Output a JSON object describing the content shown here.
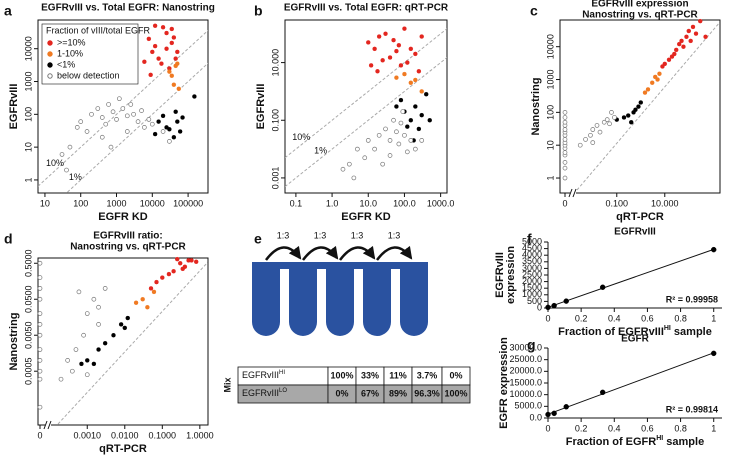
{
  "chart_data": [
    {
      "type": "scatter",
      "panel": "a",
      "title": [
        "EGFRvIII vs. Total EGFR: Nanostring"
      ],
      "xlabel": [
        "EGFR KD"
      ],
      "ylabel": [
        "EGFRvIII"
      ],
      "xlog": true,
      "ylog": true,
      "xlim": [
        6.4,
        360000
      ],
      "ylim": [
        0.4,
        75000
      ],
      "xticks": [
        10,
        100,
        1000,
        10000,
        100000
      ],
      "yticks": [
        1,
        10,
        100,
        1000,
        10000
      ],
      "legend_title": "Fraction of vIII/total EGFR",
      "ref_lines": [
        {
          "label": "10%",
          "ratio": 0.1
        },
        {
          "label": "1%",
          "ratio": 0.01
        }
      ],
      "series": [
        {
          "name": ">=10%",
          "color": "#e3261f",
          "x": [
            12000,
            20000,
            25000,
            35000,
            40000,
            8000,
            10000,
            12000,
            15000,
            6000,
            18000,
            30000,
            45000,
            50000,
            9000,
            25000,
            35000
          ],
          "y": [
            50000,
            45000,
            30000,
            40000,
            22000,
            20000,
            8000,
            12000,
            5000,
            4000,
            3500,
            2500,
            5000,
            8000,
            1600,
            10000,
            15000
          ]
        },
        {
          "name": "1-10%",
          "color": "#f07a22",
          "x": [
            30000,
            35000,
            40000,
            45000,
            50000,
            55000
          ],
          "y": [
            2000,
            1500,
            800,
            3000,
            3500,
            600
          ]
        },
        {
          "name": "<1%",
          "color": "#000000",
          "x": [
            15000,
            20000,
            25000,
            30000,
            40000,
            45000,
            50000,
            60000,
            70000,
            150000,
            12000
          ],
          "y": [
            60,
            90,
            40,
            35,
            20,
            120,
            60,
            30,
            80,
            350,
            25
          ]
        },
        {
          "name": "below detection",
          "color": "#777777",
          "open": true,
          "x": [
            30,
            50,
            80,
            100,
            150,
            200,
            300,
            400,
            500,
            600,
            800,
            1000,
            1200,
            1500,
            2000,
            2500,
            3000,
            4000,
            5000,
            6000,
            8000,
            10000,
            20000,
            30000,
            400,
            700,
            2000,
            40
          ],
          "y": [
            6,
            10,
            40,
            60,
            30,
            100,
            150,
            80,
            50,
            200,
            120,
            70,
            300,
            150,
            90,
            200,
            100,
            60,
            130,
            40,
            70,
            50,
            30,
            15,
            20,
            10,
            30,
            2
          ]
        }
      ]
    },
    {
      "type": "scatter",
      "panel": "b",
      "title": [
        "EGFRvIII vs. Total EGFR: qRT-PCR"
      ],
      "xlabel": [
        "EGFR KD"
      ],
      "ylabel": [
        "EGFRvIII"
      ],
      "xlog": true,
      "ylog": true,
      "xlim": [
        0.05,
        1500
      ],
      "ylim": [
        0.0003,
        300
      ],
      "xticks": [
        0.1,
        {
          "value": 1,
          "label": "1.0"
        },
        {
          "value": 10,
          "label": "10.0"
        },
        {
          "value": 100,
          "label": "100.0"
        },
        {
          "value": 1000,
          "label": "1000.0"
        }
      ],
      "yticks": [
        0.001,
        {
          "value": 0.1,
          "label": "0.100"
        },
        {
          "value": 10,
          "label": "10.000"
        }
      ],
      "ref_lines": [
        {
          "label": "10%",
          "ratio": 0.1
        },
        {
          "label": "1%",
          "ratio": 0.01
        }
      ],
      "series": [
        {
          "color": "#e3261f",
          "x": [
            10,
            15,
            20,
            30,
            50,
            70,
            100,
            150,
            200,
            300,
            40,
            80,
            120,
            250,
            12,
            18,
            25,
            60
          ],
          "y": [
            50,
            30,
            80,
            100,
            60,
            40,
            150,
            30,
            20,
            80,
            15,
            8,
            10,
            5,
            8,
            5,
            12,
            25
          ]
        },
        {
          "color": "#f07a22",
          "x": [
            60,
            100,
            150,
            200,
            300
          ],
          "y": [
            3,
            4,
            2,
            2.5,
            1
          ]
        },
        {
          "color": "#000000",
          "x": [
            80,
            100,
            150,
            200,
            300,
            400,
            250,
            120,
            500,
            60,
            180
          ],
          "y": [
            0.5,
            0.2,
            0.1,
            0.3,
            0.15,
            0.8,
            0.05,
            0.06,
            0.1,
            0.3,
            0.02
          ]
        },
        {
          "color": "#777777",
          "open": true,
          "x": [
            2,
            3,
            5,
            8,
            10,
            15,
            20,
            30,
            40,
            50,
            60,
            80,
            100,
            150,
            200,
            25,
            40,
            70,
            120,
            300,
            4,
            90
          ],
          "y": [
            0.002,
            0.003,
            0.01,
            0.005,
            0.02,
            0.01,
            0.03,
            0.05,
            0.02,
            0.1,
            0.04,
            0.08,
            0.03,
            0.02,
            0.01,
            0.003,
            0.006,
            0.015,
            0.008,
            0.02,
            0.001,
            0.2
          ]
        }
      ]
    },
    {
      "type": "scatter",
      "panel": "c",
      "title": [
        "EGFRvIII expression",
        "Nanostring vs. qRT-PCR"
      ],
      "xlabel": [
        "qRT-PCR"
      ],
      "ylabel": [
        "Nanostring"
      ],
      "xlog": true,
      "ylog": true,
      "zero_break": true,
      "xlim": [
        0.002,
        2000
      ],
      "ylim": [
        0.35,
        65000
      ],
      "xticks": [
        0,
        {
          "value": 0.1,
          "label": "0.100"
        },
        {
          "value": 10,
          "label": "10.000"
        }
      ],
      "yticks": [
        1,
        10,
        100,
        1000,
        10000
      ],
      "series": [
        {
          "color": "#e3261f",
          "x": [
            20,
            30,
            50,
            80,
            100,
            150,
            200,
            10,
            15,
            40,
            60,
            120,
            300,
            500,
            8,
            25
          ],
          "y": [
            5000,
            8000,
            15000,
            20000,
            30000,
            40000,
            25000,
            3000,
            4000,
            12000,
            10000,
            15000,
            60000,
            20000,
            2500,
            6000
          ]
        },
        {
          "color": "#f07a22",
          "x": [
            2,
            3,
            4,
            5,
            1.5,
            6
          ],
          "y": [
            500,
            800,
            1200,
            1000,
            400,
            1500
          ]
        },
        {
          "color": "#000000",
          "x": [
            0.3,
            0.5,
            0.8,
            0.2,
            0.1,
            1,
            0.4,
            0.6
          ],
          "y": [
            80,
            100,
            150,
            70,
            60,
            200,
            50,
            120
          ]
        },
        {
          "color": "#777777",
          "open": true,
          "x": [
            0,
            0,
            0,
            0,
            0,
            0,
            0,
            0,
            0,
            0,
            0,
            0,
            0,
            0,
            0,
            0,
            0.005,
            0.008,
            0.01,
            0.015,
            0.02,
            0.03,
            0.04,
            0.05,
            0.06,
            0.08,
            0.01,
            0.003
          ],
          "y": [
            5,
            8,
            10,
            12,
            15,
            20,
            25,
            30,
            40,
            50,
            70,
            3,
            2,
            1,
            100,
            6,
            15,
            20,
            30,
            40,
            25,
            50,
            60,
            45,
            100,
            70,
            12,
            10
          ]
        }
      ]
    },
    {
      "type": "scatter",
      "panel": "d",
      "title": [
        "EGFRvIII ratio:",
        "Nanostring vs. qRT-PCR"
      ],
      "xlabel": [
        "qRT-PCR"
      ],
      "ylabel": [
        "Nanostring"
      ],
      "xlog": true,
      "ylog": true,
      "zero_break": true,
      "xlim": [
        0.00013,
        1.65
      ],
      "ylim": [
        1.6e-05,
        0.7
      ],
      "xticks": [
        0,
        {
          "value": 0.001,
          "label": "0.0010"
        },
        {
          "value": 0.01,
          "label": "0.0100"
        },
        {
          "value": 0.1,
          "label": "0.1000"
        },
        {
          "value": 1,
          "label": "1.0000"
        }
      ],
      "yticks": [
        0.0005,
        {
          "value": 0.005,
          "label": "0.0050"
        },
        {
          "value": 0.05,
          "label": "0.0500"
        },
        {
          "value": 0.5,
          "label": "0.5000"
        }
      ],
      "series": [
        {
          "color": "#e3261f",
          "x": [
            0.2,
            0.3,
            0.4,
            0.5,
            0.6,
            0.8,
            0.1,
            0.15,
            0.05,
            0.07,
            0.25,
            0.35
          ],
          "y": [
            0.3,
            0.5,
            0.4,
            0.6,
            0.6,
            0.55,
            0.2,
            0.25,
            0.1,
            0.15,
            0.65,
            0.35
          ]
        },
        {
          "color": "#f07a22",
          "x": [
            0.03,
            0.04,
            0.06,
            0.02
          ],
          "y": [
            0.05,
            0.03,
            0.08,
            0.04
          ]
        },
        {
          "color": "#000000",
          "x": [
            0.005,
            0.008,
            0.01,
            0.003,
            0.002,
            0.0015,
            0.001,
            0.0007,
            0.012
          ],
          "y": [
            0.005,
            0.01,
            0.008,
            0.003,
            0.002,
            0.0008,
            0.001,
            0.0008,
            0.015
          ]
        },
        {
          "color": "#777777",
          "open": true,
          "x": [
            0,
            0,
            0,
            0,
            0,
            0,
            0,
            0,
            0,
            0,
            0,
            0,
            0.0003,
            0.0005,
            0.0008,
            0.001,
            0.0015,
            0.002,
            0.003,
            0.0006,
            0.0004,
            0.0002,
            0.001,
            0.002
          ],
          "y": [
            0.5,
            0.1,
            0.05,
            0.02,
            0.01,
            0.005,
            0.002,
            0.001,
            0.0005,
            0.0003,
            5e-05,
            0.2,
            0.001,
            0.002,
            0.005,
            0.02,
            0.05,
            0.03,
            0.1,
            0.08,
            0.0005,
            0.0003,
            0.0004,
            0.01
          ]
        }
      ]
    },
    {
      "type": "scatter",
      "panel": "f",
      "title": [
        "EGFRvIII"
      ],
      "xlabel": [
        "Fraction of EGFRvIII",
        "HI",
        " sample"
      ],
      "ylabel": [
        "EGFRvIII",
        "expression"
      ],
      "fit": "linear",
      "annotation": "R² = 0.99958",
      "xlim": [
        0,
        1.05
      ],
      "ylim": [
        0,
        5000
      ],
      "xticks": [
        0,
        0.2,
        0.4,
        0.6,
        0.8,
        1
      ],
      "yticks": [
        0,
        500,
        1000,
        1500,
        2000,
        2500,
        3000,
        3500,
        4000,
        4500,
        5000
      ],
      "series": [
        {
          "color": "#000000",
          "x": [
            0,
            0.037,
            0.11,
            0.33,
            1
          ],
          "y": [
            50,
            180,
            520,
            1570,
            4420
          ]
        }
      ]
    },
    {
      "type": "scatter",
      "panel": "g",
      "title": [
        "EGFR"
      ],
      "xlabel": [
        "Fraction of EGFR",
        "HI",
        " sample"
      ],
      "ylabel": [
        "EGFR expression"
      ],
      "fit": "linear",
      "annotation": "R² = 0.99814",
      "xlim": [
        0,
        1.05
      ],
      "ylim": [
        0,
        30000
      ],
      "xticks": [
        0,
        0.2,
        0.4,
        0.6,
        0.8,
        1
      ],
      "yticks": [
        {
          "value": 0,
          "label": "0.0"
        },
        {
          "value": 5000,
          "label": "5000.0"
        },
        {
          "value": 10000,
          "label": "10000.0"
        },
        {
          "value": 15000,
          "label": "15000.0"
        },
        {
          "value": 20000,
          "label": "20000.0"
        },
        {
          "value": 25000,
          "label": "25000.0"
        },
        {
          "value": 30000,
          "label": "30000.0"
        }
      ],
      "series": [
        {
          "color": "#000000",
          "x": [
            0,
            0.037,
            0.11,
            0.33,
            1
          ],
          "y": [
            1500,
            2000,
            4800,
            11000,
            27700
          ]
        }
      ]
    }
  ],
  "mix_panel": {
    "panel": "e",
    "steps": [
      "1:3",
      "1:3",
      "1:3",
      "1:3"
    ],
    "label": "Mix",
    "rows": [
      {
        "name": [
          "EGFRvIII",
          "HI"
        ],
        "cells": [
          "100%",
          "33%",
          "11%",
          "3.7%",
          "0%"
        ]
      },
      {
        "name": [
          "EGFRvIII",
          "LO"
        ],
        "cells": [
          "0%",
          "67%",
          "89%",
          "96.3%",
          "100%"
        ]
      }
    ]
  }
}
